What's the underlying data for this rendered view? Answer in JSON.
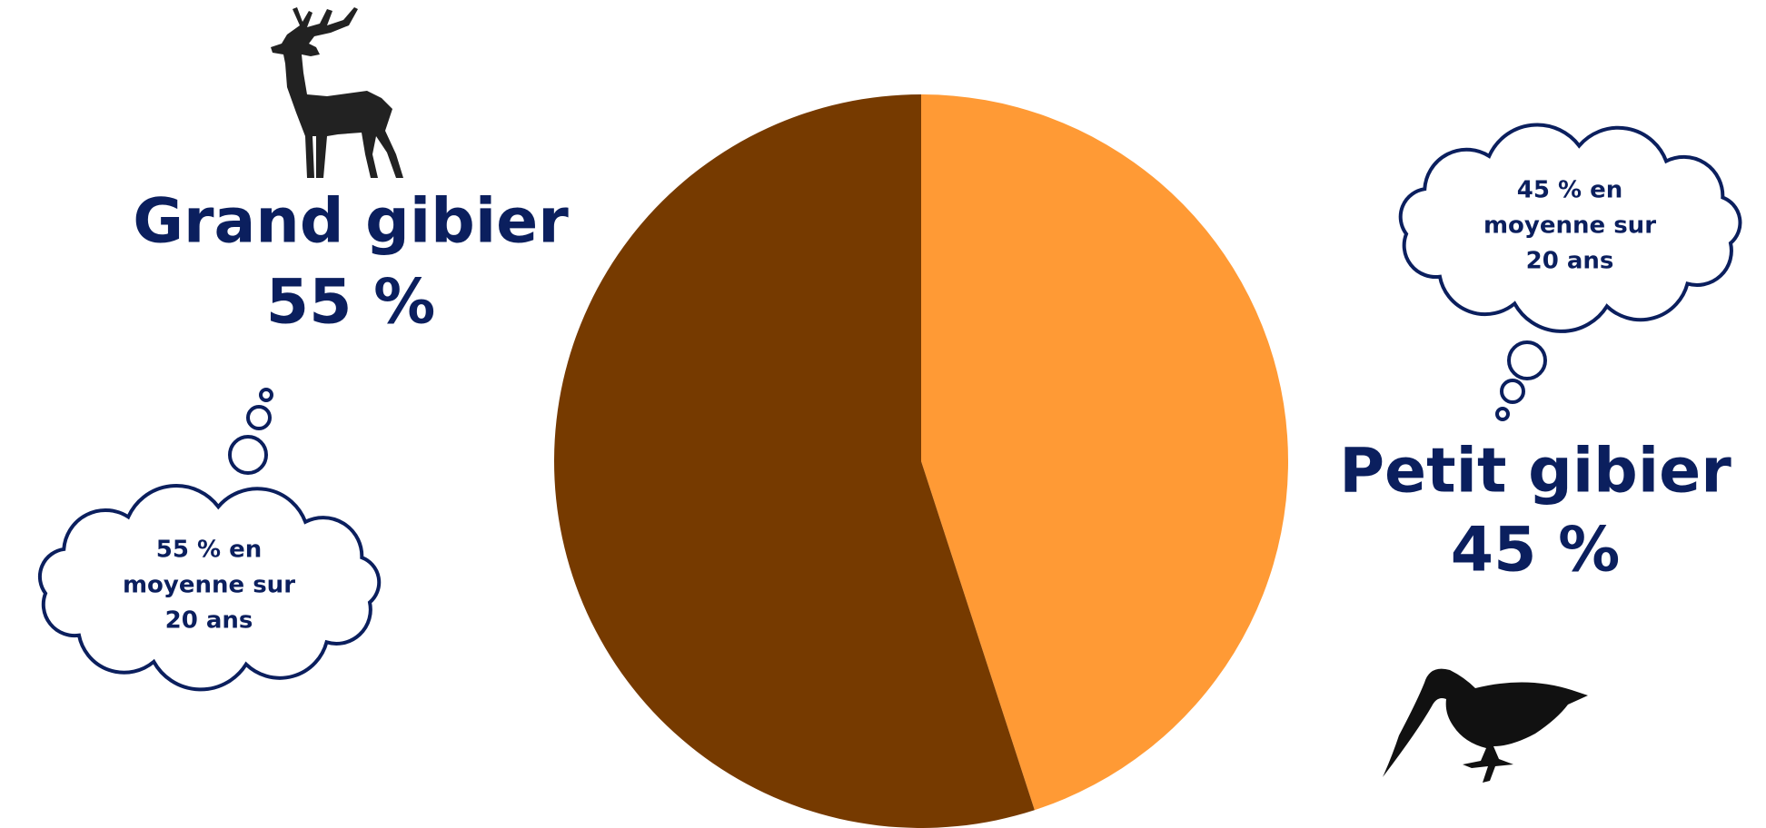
{
  "chart_data": {
    "type": "pie",
    "categories": [
      "Petit gibier",
      "Grand gibier"
    ],
    "values": [
      45,
      55
    ],
    "value_labels": [
      "45 %",
      "55 %"
    ],
    "colors": [
      "#ff9a35",
      "#763a00"
    ],
    "annotations": [
      [
        "45 % en",
        "moyenne sur",
        "20 ans"
      ],
      [
        "55 % en",
        "moyenne sur",
        "20 ans"
      ]
    ]
  }
}
